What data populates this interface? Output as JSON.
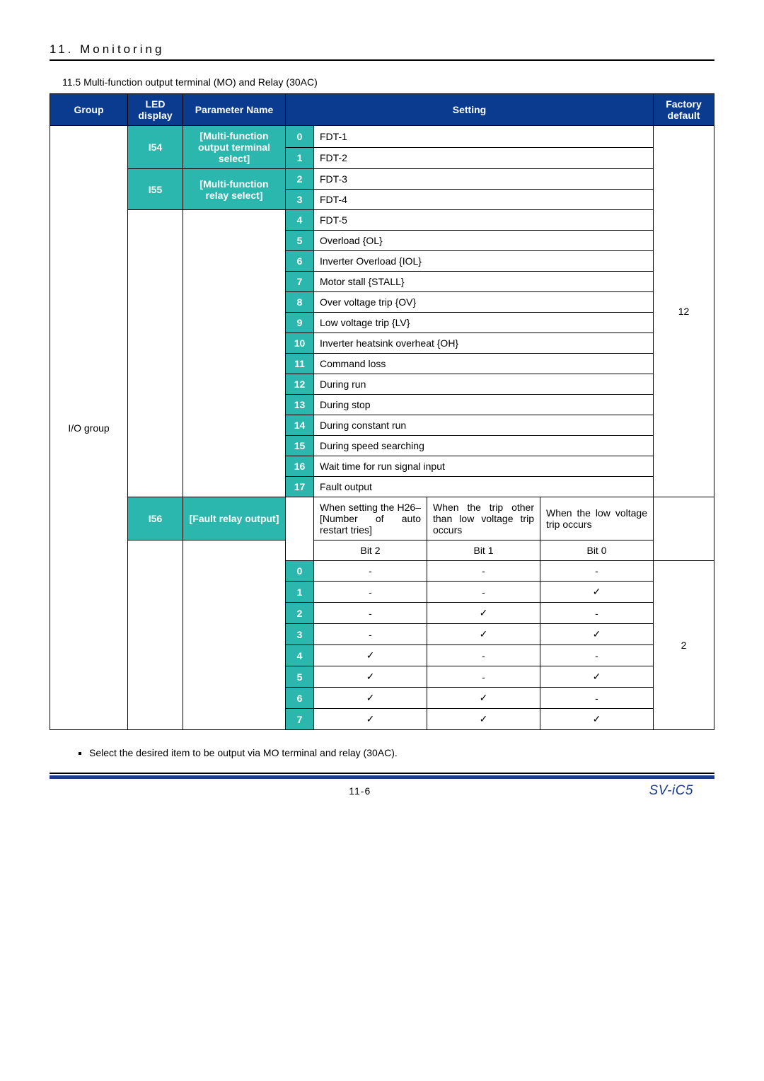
{
  "section_title": "11. Monitoring",
  "subtitle": "11.5  Multi-function output terminal (MO) and Relay (30AC)",
  "headers": {
    "group": "Group",
    "led": "LED display",
    "param": "Parameter Name",
    "setting": "Setting",
    "factory": "Factory default"
  },
  "io_group": "I/O group",
  "i54": {
    "led": "I54",
    "param": "[Multi-function output terminal select]"
  },
  "i55": {
    "led": "I55",
    "param": "[Multi-function relay select]"
  },
  "i56": {
    "led": "I56",
    "param": "[Fault relay output]"
  },
  "settings": [
    {
      "n": "0",
      "t": "FDT-1"
    },
    {
      "n": "1",
      "t": "FDT-2"
    },
    {
      "n": "2",
      "t": "FDT-3"
    },
    {
      "n": "3",
      "t": "FDT-4"
    },
    {
      "n": "4",
      "t": "FDT-5"
    },
    {
      "n": "5",
      "t": "Overload {OL}"
    },
    {
      "n": "6",
      "t": "Inverter Overload {IOL}"
    },
    {
      "n": "7",
      "t": "Motor stall {STALL}"
    },
    {
      "n": "8",
      "t": "Over voltage trip {OV}"
    },
    {
      "n": "9",
      "t": "Low voltage trip {LV}"
    },
    {
      "n": "10",
      "t": "Inverter heatsink overheat {OH}"
    },
    {
      "n": "11",
      "t": "Command loss"
    },
    {
      "n": "12",
      "t": "During run"
    },
    {
      "n": "13",
      "t": "During stop"
    },
    {
      "n": "14",
      "t": "During constant run"
    },
    {
      "n": "15",
      "t": "During speed searching"
    },
    {
      "n": "16",
      "t": "Wait time for run signal input"
    },
    {
      "n": "17",
      "t": "Fault output"
    }
  ],
  "factory_12": "12",
  "factory_2": "2",
  "fault_headers": {
    "a": "When setting the H26– [Number of auto restart tries]",
    "b": "When the trip other than low voltage trip occurs",
    "c": "When the low voltage trip occurs"
  },
  "bitlabels": {
    "b2": "Bit 2",
    "b1": "Bit 1",
    "b0": "Bit 0"
  },
  "fault_rows": [
    {
      "n": "0",
      "b2": "-",
      "b1": "-",
      "b0": "-"
    },
    {
      "n": "1",
      "b2": "-",
      "b1": "-",
      "b0": "✓"
    },
    {
      "n": "2",
      "b2": "-",
      "b1": "✓",
      "b0": "-"
    },
    {
      "n": "3",
      "b2": "-",
      "b1": "✓",
      "b0": "✓"
    },
    {
      "n": "4",
      "b2": "✓",
      "b1": "-",
      "b0": "-"
    },
    {
      "n": "5",
      "b2": "✓",
      "b1": "-",
      "b0": "✓"
    },
    {
      "n": "6",
      "b2": "✓",
      "b1": "✓",
      "b0": "-"
    },
    {
      "n": "7",
      "b2": "✓",
      "b1": "✓",
      "b0": "✓"
    }
  ],
  "bullet": "Select the desired item to be output via MO terminal and relay (30AC).",
  "page_num": "11-6",
  "model": "SV-iC5"
}
